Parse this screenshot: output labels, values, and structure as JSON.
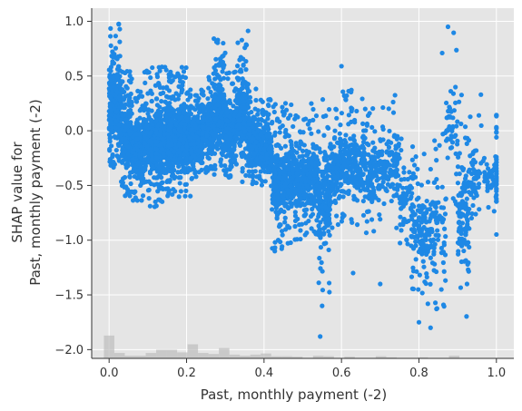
{
  "chart_data": {
    "type": "scatter",
    "title": "",
    "xlabel": "Past, monthly payment (-2)",
    "ylabel_lines": [
      "SHAP value for",
      "Past, monthly payment (-2)"
    ],
    "xlim": [
      -0.045,
      1.045
    ],
    "ylim": [
      -2.08,
      1.12
    ],
    "xticks": [
      0.0,
      0.2,
      0.4,
      0.6,
      0.8,
      1.0
    ],
    "xtick_labels": [
      "0.0",
      "0.2",
      "0.4",
      "0.6",
      "0.8",
      "1.0"
    ],
    "yticks": [
      -2.0,
      -1.5,
      -1.0,
      -0.5,
      0.0,
      0.5,
      1.0
    ],
    "ytick_labels": [
      "−2.0",
      "−1.5",
      "−1.0",
      "−0.5",
      "0.0",
      "0.5",
      "1.0"
    ],
    "grid": true,
    "point_color": "#1e88e5",
    "background_color": "#e5e5e5",
    "histogram_color": "#bdbdbd",
    "density_profile": [
      {
        "x": 0.0,
        "y_min": -0.38,
        "y_max": 0.98,
        "n": 320
      },
      {
        "x": 0.03,
        "y_min": -0.6,
        "y_max": 0.55,
        "n": 260
      },
      {
        "x": 0.06,
        "y_min": -0.7,
        "y_max": 0.4,
        "n": 220
      },
      {
        "x": 0.09,
        "y_min": -0.7,
        "y_max": 0.58,
        "n": 240
      },
      {
        "x": 0.12,
        "y_min": -0.7,
        "y_max": 0.6,
        "n": 300
      },
      {
        "x": 0.15,
        "y_min": -0.6,
        "y_max": 0.55,
        "n": 300
      },
      {
        "x": 0.18,
        "y_min": -0.65,
        "y_max": 0.62,
        "n": 280
      },
      {
        "x": 0.21,
        "y_min": -0.45,
        "y_max": 0.38,
        "n": 240
      },
      {
        "x": 0.24,
        "y_min": -0.4,
        "y_max": 0.55,
        "n": 230
      },
      {
        "x": 0.27,
        "y_min": -0.4,
        "y_max": 0.85,
        "n": 240
      },
      {
        "x": 0.3,
        "y_min": -0.45,
        "y_max": 0.55,
        "n": 230
      },
      {
        "x": 0.33,
        "y_min": -0.5,
        "y_max": 0.92,
        "n": 240
      },
      {
        "x": 0.36,
        "y_min": -0.5,
        "y_max": 0.4,
        "n": 200
      },
      {
        "x": 0.39,
        "y_min": -0.55,
        "y_max": 0.3,
        "n": 190
      },
      {
        "x": 0.42,
        "y_min": -1.1,
        "y_max": 0.25,
        "n": 170
      },
      {
        "x": 0.45,
        "y_min": -1.05,
        "y_max": 0.28,
        "n": 170
      },
      {
        "x": 0.48,
        "y_min": -1.0,
        "y_max": 0.2,
        "n": 160
      },
      {
        "x": 0.51,
        "y_min": -0.95,
        "y_max": 0.25,
        "n": 150
      },
      {
        "x": 0.54,
        "y_min": -1.5,
        "y_max": 0.3,
        "n": 170
      },
      {
        "x": 0.57,
        "y_min": -0.95,
        "y_max": 0.3,
        "n": 120
      },
      {
        "x": 0.6,
        "y_min": -0.9,
        "y_max": 0.4,
        "n": 110
      },
      {
        "x": 0.63,
        "y_min": -0.9,
        "y_max": 0.3,
        "n": 100
      },
      {
        "x": 0.66,
        "y_min": -0.95,
        "y_max": 0.3,
        "n": 90
      },
      {
        "x": 0.69,
        "y_min": -0.85,
        "y_max": 0.3,
        "n": 75
      },
      {
        "x": 0.72,
        "y_min": -1.0,
        "y_max": 0.45,
        "n": 70
      },
      {
        "x": 0.75,
        "y_min": -1.2,
        "y_max": 0.0,
        "n": 60
      },
      {
        "x": 0.78,
        "y_min": -1.5,
        "y_max": -0.1,
        "n": 80
      },
      {
        "x": 0.81,
        "y_min": -1.65,
        "y_max": -0.15,
        "n": 70
      },
      {
        "x": 0.84,
        "y_min": -1.65,
        "y_max": 0.05,
        "n": 60
      },
      {
        "x": 0.87,
        "y_min": -0.8,
        "y_max": 0.95,
        "n": 45
      },
      {
        "x": 0.9,
        "y_min": -1.75,
        "y_max": 0.4,
        "n": 120
      },
      {
        "x": 0.93,
        "y_min": -1.0,
        "y_max": 0.2,
        "n": 45
      },
      {
        "x": 0.96,
        "y_min": -0.9,
        "y_max": 0.1,
        "n": 40
      },
      {
        "x": 1.0,
        "y_min": -0.95,
        "y_max": 0.15,
        "n": 35
      }
    ],
    "isolated_points": [
      {
        "x": 0.875,
        "y": 0.95
      },
      {
        "x": 0.6,
        "y": 0.59
      },
      {
        "x": 0.86,
        "y": 0.71
      },
      {
        "x": 0.545,
        "y": -1.88
      },
      {
        "x": 0.83,
        "y": -1.8
      },
      {
        "x": 0.55,
        "y": -1.6
      },
      {
        "x": 0.8,
        "y": -1.75
      },
      {
        "x": 0.63,
        "y": -1.3
      },
      {
        "x": 0.7,
        "y": -1.4
      },
      {
        "x": 1.0,
        "y": 0.14
      },
      {
        "x": 0.96,
        "y": 0.33
      }
    ],
    "histogram": [
      {
        "x": 0.0,
        "height": 0.42
      },
      {
        "x": 0.027,
        "height": 0.1
      },
      {
        "x": 0.054,
        "height": 0.05
      },
      {
        "x": 0.081,
        "height": 0.05
      },
      {
        "x": 0.108,
        "height": 0.1
      },
      {
        "x": 0.135,
        "height": 0.16
      },
      {
        "x": 0.162,
        "height": 0.16
      },
      {
        "x": 0.189,
        "height": 0.11
      },
      {
        "x": 0.216,
        "height": 0.26
      },
      {
        "x": 0.243,
        "height": 0.1
      },
      {
        "x": 0.27,
        "height": 0.08
      },
      {
        "x": 0.297,
        "height": 0.19
      },
      {
        "x": 0.324,
        "height": 0.07
      },
      {
        "x": 0.351,
        "height": 0.05
      },
      {
        "x": 0.378,
        "height": 0.07
      },
      {
        "x": 0.405,
        "height": 0.09
      },
      {
        "x": 0.432,
        "height": 0.04
      },
      {
        "x": 0.459,
        "height": 0.04
      },
      {
        "x": 0.486,
        "height": 0.03
      },
      {
        "x": 0.54,
        "height": 0.05
      },
      {
        "x": 0.567,
        "height": 0.04
      },
      {
        "x": 0.621,
        "height": 0.03
      },
      {
        "x": 0.702,
        "height": 0.04
      },
      {
        "x": 0.729,
        "height": 0.02
      },
      {
        "x": 0.81,
        "height": 0.02
      },
      {
        "x": 0.891,
        "height": 0.05
      }
    ]
  }
}
